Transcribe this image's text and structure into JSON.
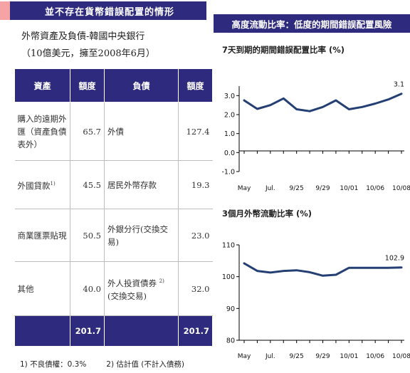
{
  "left_section": {
    "header": "並不存在貨幣錯誤配置的情形",
    "subtitle_line1": "外幣資產及負債-韓國中央銀行",
    "subtitle_line2": "（10億美元，擁至2008年6月）",
    "table": {
      "columns": [
        "資產",
        "額度",
        "負債",
        "額度"
      ],
      "rows": [
        {
          "asset": "購入的遠期外匯（資產負債表外）",
          "asset_value": "65.7",
          "liability": "外債",
          "liability_value": "127.4"
        },
        {
          "asset": "外國貸款",
          "asset_note": "1)",
          "asset_value": "45.5",
          "liability": "居民外幣存款",
          "liability_value": "19.3"
        },
        {
          "asset": "商業匯票貼現",
          "asset_value": "50.5",
          "liability": "外銀分行(交換交易)",
          "liability_value": "23.0"
        },
        {
          "asset": "其他",
          "asset_value": "40.0",
          "liability": "外人投資債券",
          "liability_note": "2)",
          "liability_sub": "(交換交易)",
          "liability_value": "32.0"
        }
      ],
      "total": {
        "asset_value": "201.7",
        "liability_value": "201.7"
      }
    },
    "footnotes": [
      "1) 不良債權：0.3%",
      "2) 估計值 (不計入債務)"
    ]
  },
  "right_section": {
    "header": "高度流動比率：低度的期間錯誤配置風險"
  },
  "chart_data": [
    {
      "type": "line",
      "title": "7天到期的期間錯誤配置比率 (%)",
      "categories": [
        "May",
        "",
        "Jul.",
        "",
        "9/25",
        "",
        "9/29",
        "",
        "10/01",
        "",
        "10/06",
        "",
        "10/08"
      ],
      "values": [
        2.75,
        2.3,
        2.5,
        2.85,
        2.28,
        2.18,
        2.4,
        2.75,
        2.28,
        2.4,
        2.58,
        2.8,
        3.1
      ],
      "ylim": [
        -1.0,
        3.5
      ],
      "yticks": [
        "-1.0",
        "0.0",
        "1.0",
        "2.0",
        "3.0"
      ],
      "xlabels": [
        "May",
        "Jul.",
        "9/25",
        "9/29",
        "10/01",
        "10/06",
        "10/08"
      ],
      "end_label": "3.1",
      "color": "#243f73"
    },
    {
      "type": "line",
      "title": "3個月外幣流動比率 (%)",
      "categories": [
        "May",
        "",
        "Jul.",
        "",
        "9/25",
        "",
        "9/29",
        "",
        "10/01",
        "",
        "10/06",
        "",
        "10/08"
      ],
      "values": [
        104.2,
        101.8,
        101.3,
        101.8,
        102.0,
        101.4,
        100.3,
        100.6,
        102.8,
        102.8,
        102.8,
        102.8,
        102.9
      ],
      "ylim": [
        80,
        110
      ],
      "yticks": [
        "80",
        "90",
        "100",
        "110"
      ],
      "xlabels": [
        "May",
        "Jul.",
        "9/25",
        "9/29",
        "10/01",
        "10/06",
        "10/08"
      ],
      "end_label": "102.9",
      "color": "#243f73"
    }
  ]
}
